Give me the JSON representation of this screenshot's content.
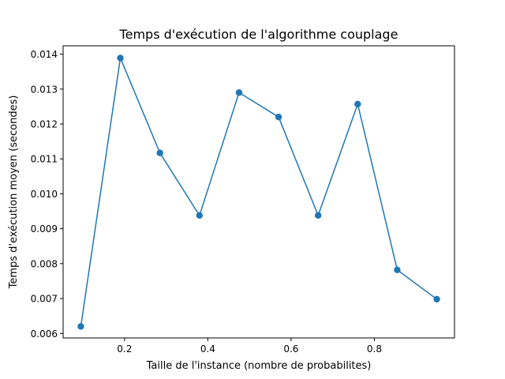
{
  "chart_data": {
    "type": "line",
    "title": "Temps d'exécution de l'algorithme couplage",
    "xlabel": "Taille de l'instance (nombre de probabilites)",
    "ylabel": "Temps d'exécution moyen (secondes)",
    "xlim": [
      0.0525,
      0.9925
    ],
    "ylim": [
      0.00587,
      0.01424
    ],
    "grid": false,
    "legend": "none",
    "series_color": "#1f77b4",
    "marker": "circle",
    "x": [
      0.095,
      0.19,
      0.285,
      0.38,
      0.475,
      0.57,
      0.665,
      0.76,
      0.855,
      0.95
    ],
    "y": [
      0.0062,
      0.01389,
      0.01117,
      0.00938,
      0.0129,
      0.0122,
      0.00938,
      0.01257,
      0.00782,
      0.00698
    ],
    "xticks": [
      0.2,
      0.4,
      0.6,
      0.8
    ],
    "xtick_labels": [
      "0.2",
      "0.4",
      "0.6",
      "0.8"
    ],
    "yticks": [
      0.006,
      0.007,
      0.008,
      0.009,
      0.01,
      0.011,
      0.012,
      0.013,
      0.014
    ],
    "ytick_labels": [
      "0.006",
      "0.007",
      "0.008",
      "0.009",
      "0.010",
      "0.011",
      "0.012",
      "0.013",
      "0.014"
    ]
  }
}
